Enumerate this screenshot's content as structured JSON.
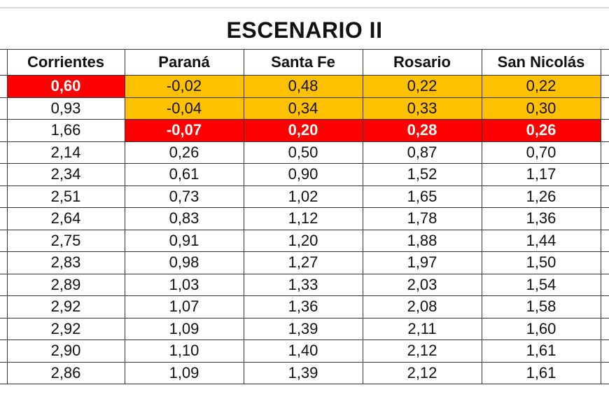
{
  "title": "ESCENARIO II",
  "colors": {
    "alert_red": "#ff0000",
    "warning_orange": "#ffc000",
    "border": "#333333"
  },
  "table": {
    "headers": [
      "Corrientes",
      "Paraná",
      "Santa Fe",
      "Rosario",
      "San Nicolás"
    ],
    "rows": [
      {
        "values": [
          "0,60",
          "-0,02",
          "0,48",
          "0,22",
          "0,22"
        ],
        "status": [
          "red",
          "orange",
          "orange",
          "orange",
          "orange"
        ]
      },
      {
        "values": [
          "0,93",
          "-0,04",
          "0,34",
          "0,33",
          "0,30"
        ],
        "status": [
          "white",
          "orange",
          "orange",
          "orange",
          "orange"
        ]
      },
      {
        "values": [
          "1,66",
          "-0,07",
          "0,20",
          "0,28",
          "0,26"
        ],
        "status": [
          "white",
          "red",
          "red",
          "red",
          "red"
        ]
      },
      {
        "values": [
          "2,14",
          "0,26",
          "0,50",
          "0,87",
          "0,70"
        ],
        "status": [
          "white",
          "white",
          "white",
          "white",
          "white"
        ]
      },
      {
        "values": [
          "2,34",
          "0,61",
          "0,90",
          "1,52",
          "1,17"
        ],
        "status": [
          "white",
          "white",
          "white",
          "white",
          "white"
        ]
      },
      {
        "values": [
          "2,51",
          "0,73",
          "1,02",
          "1,65",
          "1,26"
        ],
        "status": [
          "white",
          "white",
          "white",
          "white",
          "white"
        ]
      },
      {
        "values": [
          "2,64",
          "0,83",
          "1,12",
          "1,78",
          "1,36"
        ],
        "status": [
          "white",
          "white",
          "white",
          "white",
          "white"
        ]
      },
      {
        "values": [
          "2,75",
          "0,91",
          "1,20",
          "1,88",
          "1,44"
        ],
        "status": [
          "white",
          "white",
          "white",
          "white",
          "white"
        ]
      },
      {
        "values": [
          "2,83",
          "0,98",
          "1,27",
          "1,97",
          "1,50"
        ],
        "status": [
          "white",
          "white",
          "white",
          "white",
          "white"
        ]
      },
      {
        "values": [
          "2,89",
          "1,03",
          "1,33",
          "2,03",
          "1,54"
        ],
        "status": [
          "white",
          "white",
          "white",
          "white",
          "white"
        ]
      },
      {
        "values": [
          "2,92",
          "1,07",
          "1,36",
          "2,08",
          "1,58"
        ],
        "status": [
          "white",
          "white",
          "white",
          "white",
          "white"
        ]
      },
      {
        "values": [
          "2,92",
          "1,09",
          "1,39",
          "2,11",
          "1,60"
        ],
        "status": [
          "white",
          "white",
          "white",
          "white",
          "white"
        ]
      },
      {
        "values": [
          "2,90",
          "1,10",
          "1,40",
          "2,12",
          "1,61"
        ],
        "status": [
          "white",
          "white",
          "white",
          "white",
          "white"
        ]
      },
      {
        "values": [
          "2,86",
          "1,09",
          "1,39",
          "2,12",
          "1,61"
        ],
        "status": [
          "white",
          "white",
          "white",
          "white",
          "white"
        ]
      }
    ]
  }
}
